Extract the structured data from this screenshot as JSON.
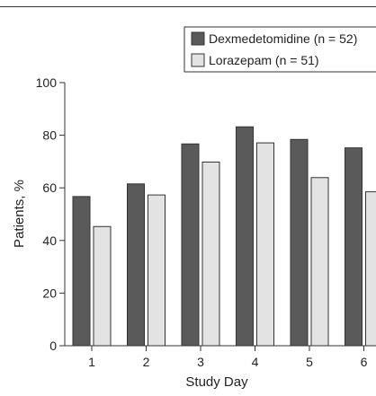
{
  "chart_data": {
    "type": "bar",
    "xlabel": "Study Day",
    "ylabel": "Patients, %",
    "categories": [
      "1",
      "2",
      "3",
      "4",
      "5",
      "6"
    ],
    "ylim": [
      0,
      100
    ],
    "yticks": [
      0,
      20,
      40,
      60,
      80,
      100
    ],
    "legend_position": "top-right",
    "series": [
      {
        "name": "Dexmedetomidine (n = 52)",
        "color": "#5a5a5a",
        "values": [
          56.7,
          61.5,
          76.7,
          83.2,
          78.4,
          75.2
        ]
      },
      {
        "name": "Lorazepam (n = 51)",
        "color": "#e3e3e3",
        "values": [
          45.3,
          57.3,
          69.8,
          77.1,
          63.9,
          58.5
        ]
      }
    ]
  }
}
